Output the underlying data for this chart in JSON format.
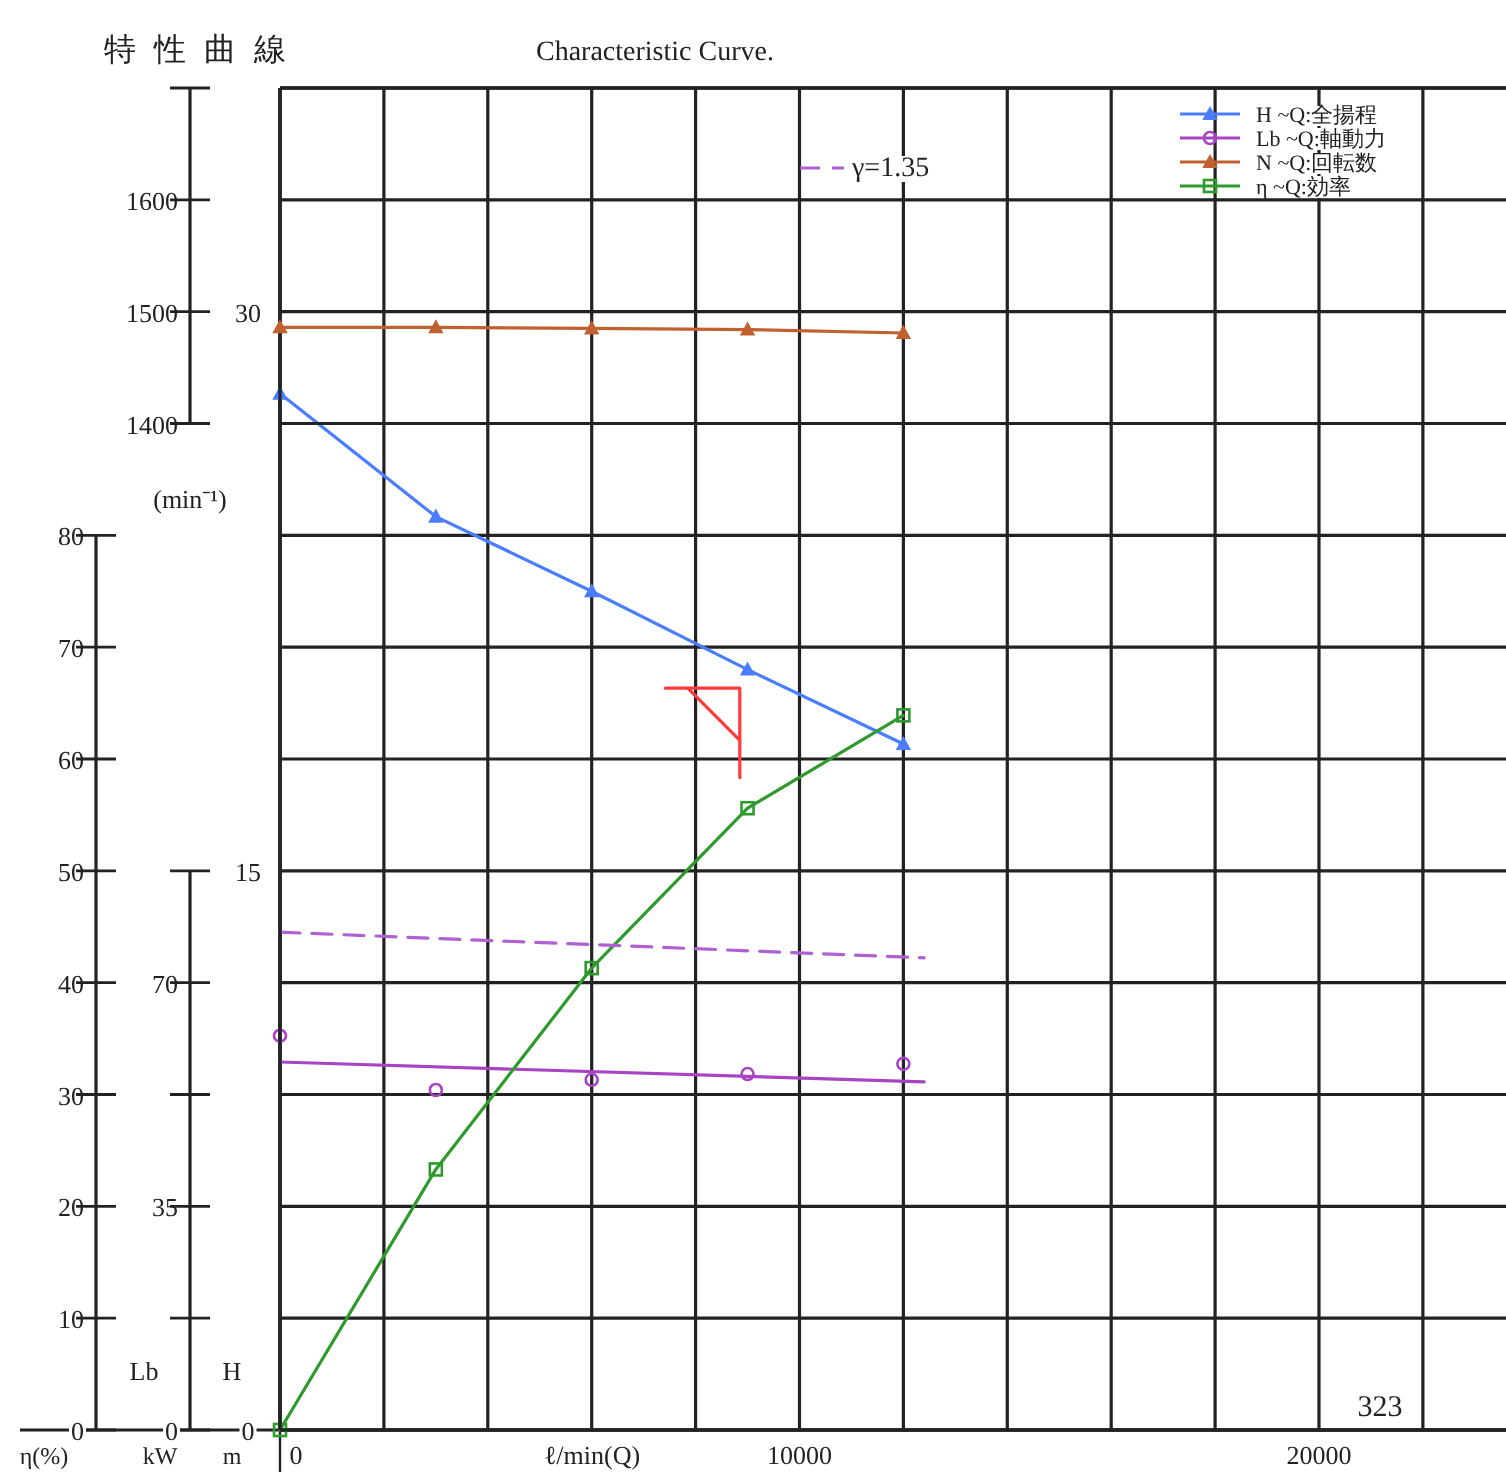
{
  "chart_data": [
    {
      "type": "line",
      "title": "特性曲線",
      "subtitle": "Characteristic Curve.",
      "xlabel": "ℓ/min(Q)",
      "ylabel": "η(%)",
      "y2label": "m",
      "y3label": "kW",
      "xlim": [
        0,
        23600
      ],
      "xticks": [
        0,
        {
          "value": 2000,
          "label": null
        },
        {
          "value": 4000,
          "label": null
        },
        {
          "value": 6000,
          "label": null
        },
        {
          "value": 8000,
          "label": null
        },
        10000,
        {
          "value": 12000,
          "label": null
        },
        {
          "value": 14000,
          "label": null
        },
        {
          "value": 16000,
          "label": null
        },
        {
          "value": 18000,
          "label": null
        },
        20000,
        {
          "value": 22000,
          "label": null
        }
      ],
      "ylim": [
        0,
        120
      ],
      "yticks": [
        0,
        10,
        20,
        30,
        40,
        50,
        60,
        70,
        80
      ],
      "y2lim": [
        0,
        36
      ],
      "y2ticks": [
        0,
        15,
        30
      ],
      "y3lim": [
        0,
        210
      ],
      "y3ticks": [
        0,
        {
          "value": 17.5,
          "label": null
        },
        35,
        {
          "value": 52.5,
          "label": null
        },
        70,
        {
          "value": 87.5,
          "label": null
        }
      ],
      "grid": true,
      "legend": "top right",
      "series": [
        {
          "name": "H ~Q:全揚程",
          "type": "line",
          "axis": "y2",
          "color": "#4a7dff",
          "marker": "triangle",
          "x": [
            0,
            3000,
            6000,
            9000,
            12000
          ],
          "values": [
            27.8,
            24.5,
            22.5,
            20.4,
            18.4
          ]
        },
        {
          "name": "Lb ~Q:軸動力",
          "type": "scatter",
          "axis": "y3",
          "color": "#a844c4",
          "marker": "circle",
          "x": [
            0,
            3000,
            6000,
            9000,
            12000
          ],
          "values": [
            61.7,
            53.2,
            54.8,
            55.7,
            57.3
          ]
        },
        {
          "type": "line",
          "axis": "y3",
          "color": "#a844c4",
          "marker": "none",
          "x": [
            0,
            12400
          ],
          "values": [
            57.6,
            54.5
          ]
        },
        {
          "name": "η ~Q:効率",
          "type": "line",
          "color": "#2e9a2e",
          "marker": "square",
          "x": [
            0,
            3000,
            6000,
            9000,
            12000
          ],
          "values": [
            0,
            23.3,
            41.3,
            55.6,
            63.9
          ]
        },
        {
          "name": "γ=1.35",
          "type": "line",
          "axis": "y3",
          "color": "#b060d0",
          "marker": "none",
          "line_style": "dashed",
          "x": [
            0,
            12400
          ],
          "values": [
            77.9,
            73.9
          ]
        },
        {
          "type": "line",
          "axis": "y2",
          "color": "#ff3b3b",
          "marker": "none",
          "x": [
            7420,
            8850,
            8850
          ],
          "values": [
            19.9,
            19.9,
            17.5
          ]
        },
        {
          "type": "line",
          "axis": "y2",
          "color": "#ff3b3b",
          "marker": "none",
          "x": [
            7850,
            8850
          ],
          "values": [
            19.9,
            18.5
          ]
        }
      ],
      "annotations": [
        "Lb",
        "H",
        "323",
        "(min⁻¹)"
      ]
    },
    {
      "type": "line",
      "xlim": [
        0,
        23600
      ],
      "ylim": [
        500,
        1700
      ],
      "yticks": [
        1400,
        1500,
        1600,
        {
          "value": 1700,
          "label": null
        }
      ],
      "tick_labels": "y",
      "grid": "y",
      "legend": "top right",
      "series": [
        {
          "name": "N ~Q:回転数",
          "type": "line",
          "color": "#c0612f",
          "marker": "triangle",
          "x": [
            0,
            3000,
            6000,
            9000,
            12000
          ],
          "values": [
            1486,
            1486,
            1485,
            1484,
            1481
          ]
        }
      ]
    }
  ]
}
